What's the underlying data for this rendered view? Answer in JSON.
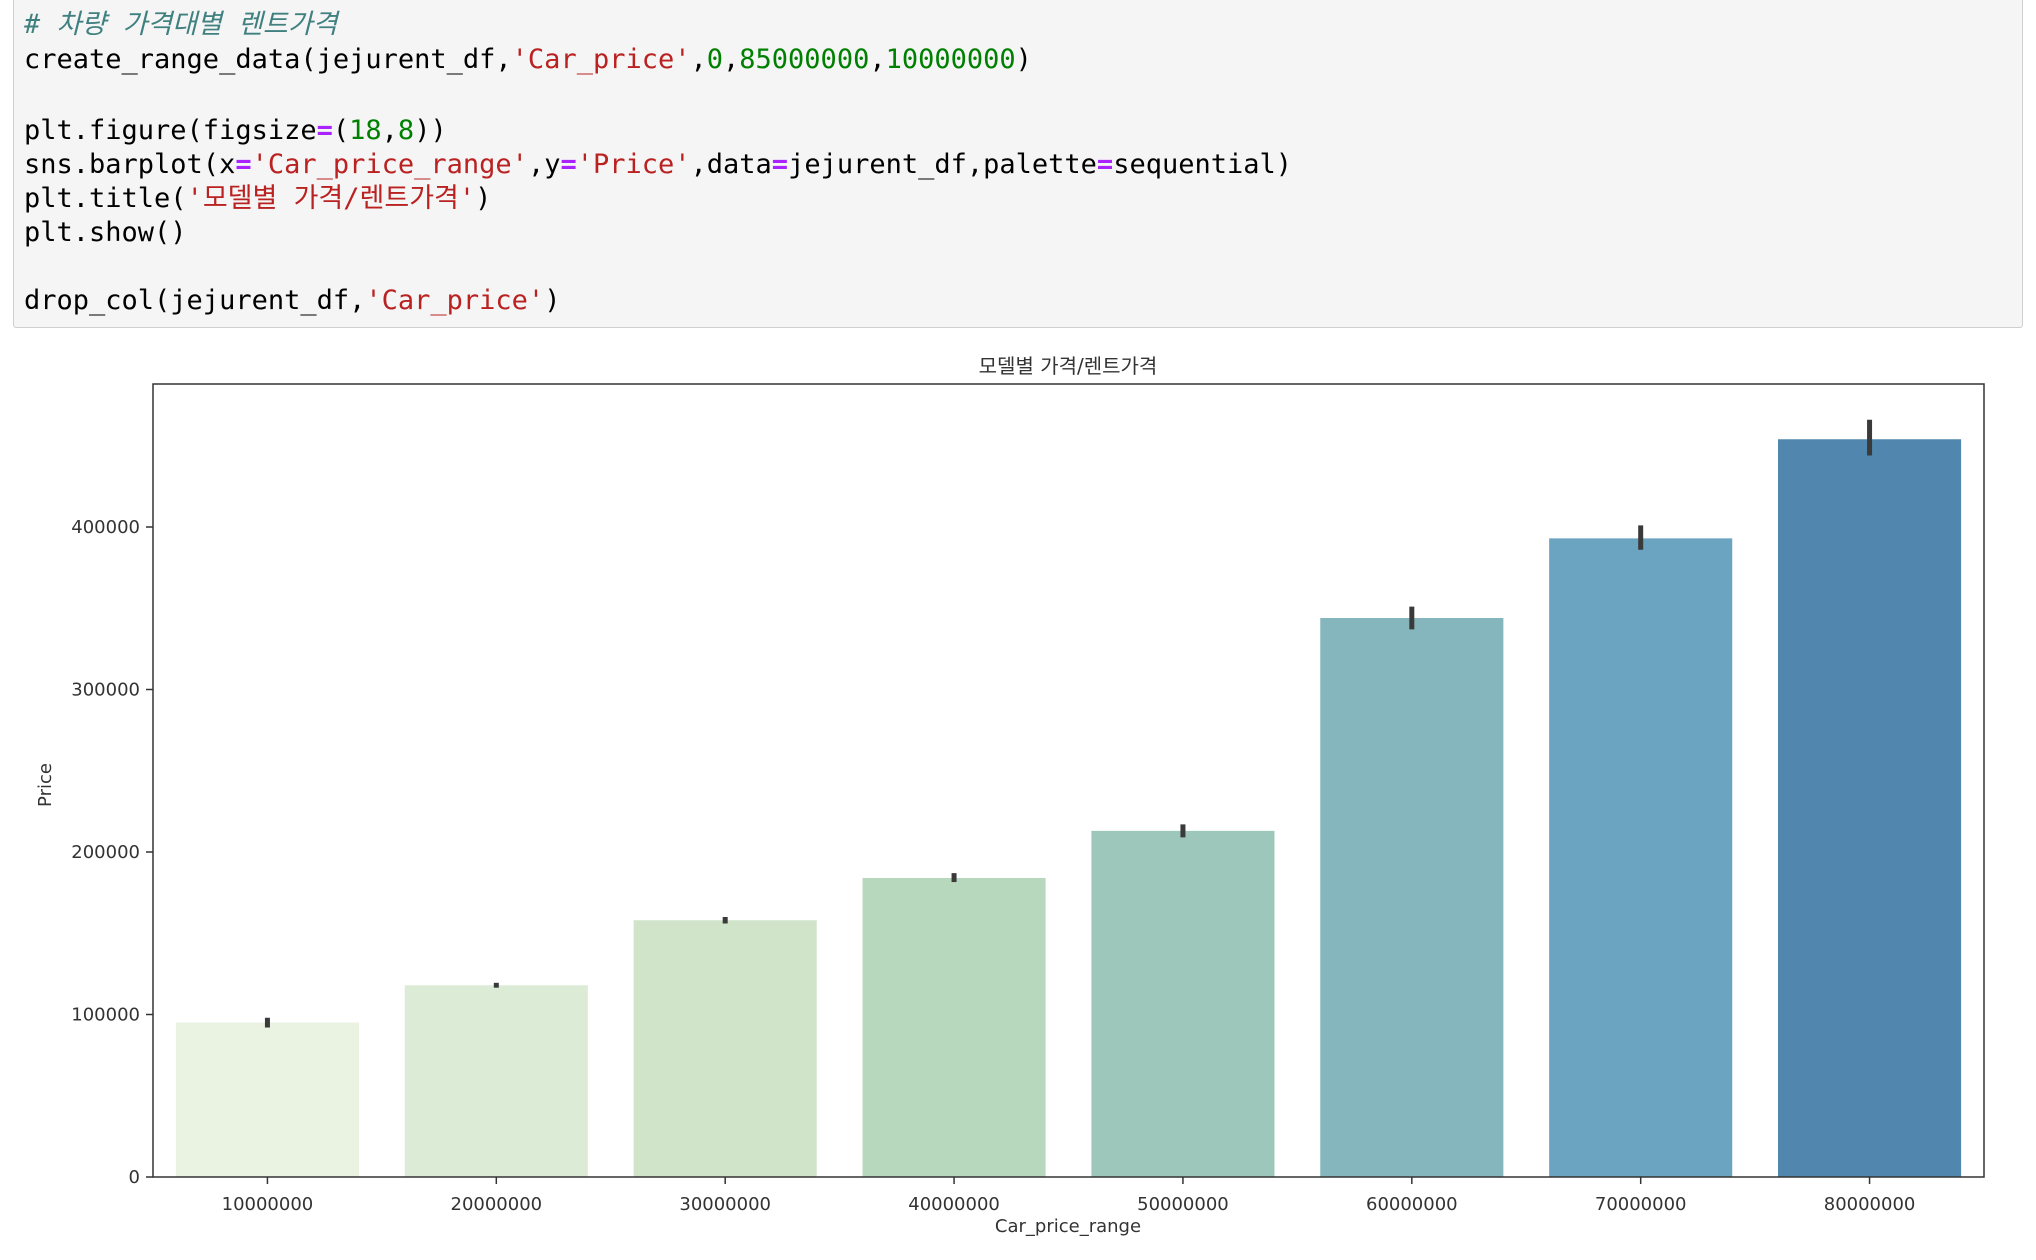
{
  "code_cell": {
    "lines": [
      [
        {
          "t": "comment",
          "v": "# 차량 가격대별 렌트가격"
        }
      ],
      [
        {
          "t": "plain",
          "v": "create_range_data(jejurent_df,"
        },
        {
          "t": "str",
          "v": "'Car_price'"
        },
        {
          "t": "plain",
          "v": ","
        },
        {
          "t": "num",
          "v": "0"
        },
        {
          "t": "plain",
          "v": ","
        },
        {
          "t": "num",
          "v": "85000000"
        },
        {
          "t": "plain",
          "v": ","
        },
        {
          "t": "num",
          "v": "10000000"
        },
        {
          "t": "plain",
          "v": ")"
        }
      ],
      [],
      [
        {
          "t": "plain",
          "v": "plt.figure(figsize"
        },
        {
          "t": "op",
          "v": "="
        },
        {
          "t": "plain",
          "v": "("
        },
        {
          "t": "num",
          "v": "18"
        },
        {
          "t": "plain",
          "v": ","
        },
        {
          "t": "num",
          "v": "8"
        },
        {
          "t": "plain",
          "v": "))"
        }
      ],
      [
        {
          "t": "plain",
          "v": "sns.barplot(x"
        },
        {
          "t": "op",
          "v": "="
        },
        {
          "t": "str",
          "v": "'Car_price_range'"
        },
        {
          "t": "plain",
          "v": ",y"
        },
        {
          "t": "op",
          "v": "="
        },
        {
          "t": "str",
          "v": "'Price'"
        },
        {
          "t": "plain",
          "v": ",data"
        },
        {
          "t": "op",
          "v": "="
        },
        {
          "t": "plain",
          "v": "jejurent_df,palette"
        },
        {
          "t": "op",
          "v": "="
        },
        {
          "t": "plain",
          "v": "sequential)"
        }
      ],
      [
        {
          "t": "plain",
          "v": "plt.title("
        },
        {
          "t": "str",
          "v": "'모델별 가격/렌트가격'"
        },
        {
          "t": "plain",
          "v": ")"
        }
      ],
      [
        {
          "t": "plain",
          "v": "plt.show()"
        }
      ],
      [],
      [
        {
          "t": "plain",
          "v": "drop_col(jejurent_df,"
        },
        {
          "t": "str",
          "v": "'Car_price'"
        },
        {
          "t": "plain",
          "v": ")"
        }
      ]
    ]
  },
  "chart_data": {
    "type": "bar",
    "title": "모델별 가격/렌트가격",
    "xlabel": "Car_price_range",
    "ylabel": "Price",
    "categories": [
      "10000000",
      "20000000",
      "30000000",
      "40000000",
      "50000000",
      "60000000",
      "70000000",
      "80000000"
    ],
    "values": [
      95000,
      118000,
      158000,
      184000,
      213000,
      344000,
      393000,
      454000
    ],
    "error_bars": [
      [
        92000,
        98000
      ],
      [
        116500,
        119500
      ],
      [
        156000,
        160000
      ],
      [
        181500,
        187000
      ],
      [
        209000,
        217000
      ],
      [
        337000,
        351000
      ],
      [
        386000,
        401000
      ],
      [
        444000,
        466000
      ]
    ],
    "colors": [
      "#eaf2e2",
      "#dcebd6",
      "#cfe4c9",
      "#b7d8bc",
      "#9dc7ba",
      "#86b6bd",
      "#6aa4c0",
      "#5187ae"
    ],
    "error_color": "#3a3a3a",
    "ylim": [
      0,
      488000
    ],
    "yticks": [
      0,
      100000,
      200000,
      300000,
      400000
    ],
    "ytick_labels": [
      "0",
      "100000",
      "200000",
      "300000",
      "400000"
    ],
    "grid": false
  }
}
